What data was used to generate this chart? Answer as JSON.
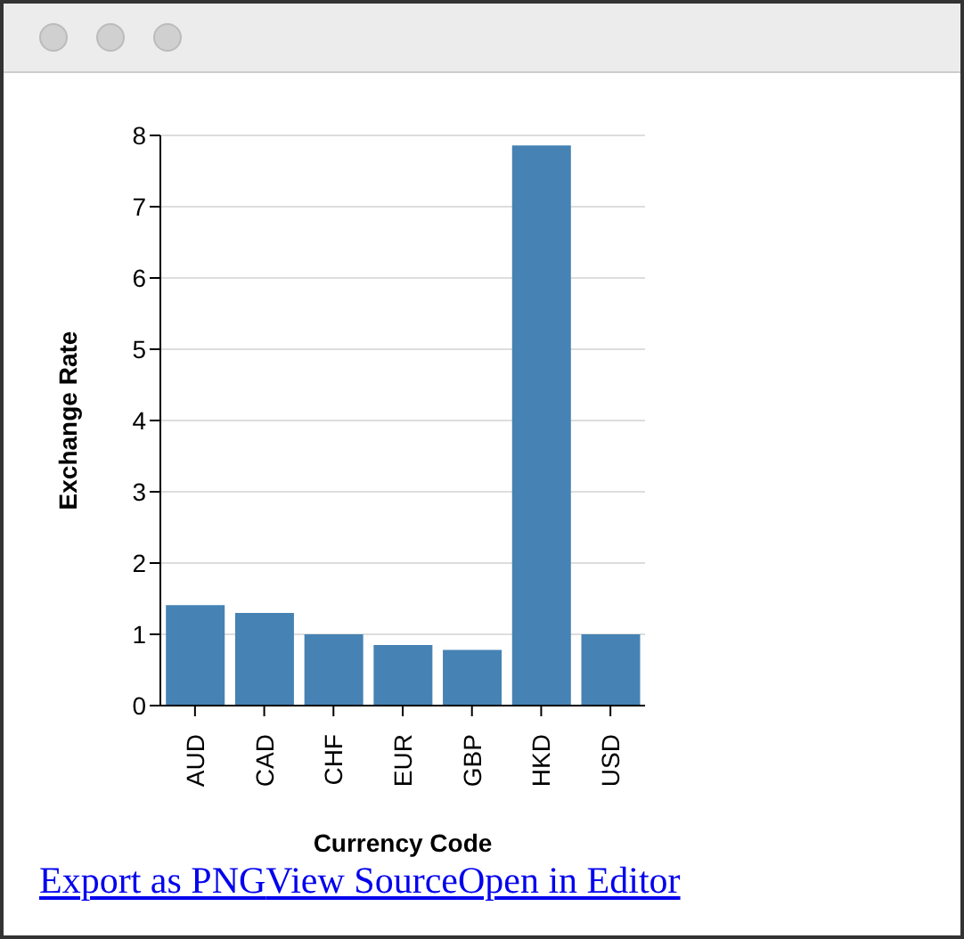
{
  "chart_data": {
    "type": "bar",
    "categories": [
      "AUD",
      "CAD",
      "CHF",
      "EUR",
      "GBP",
      "HKD",
      "USD"
    ],
    "values": [
      1.41,
      1.3,
      1.0,
      0.85,
      0.78,
      7.86,
      1.0
    ],
    "color": "#4682b4",
    "xlabel": "Currency Code",
    "ylabel": "Exchange Rate",
    "ylim": [
      0,
      8
    ],
    "yticks": [
      0,
      1,
      2,
      3,
      4,
      5,
      6,
      7,
      8
    ],
    "grid": "y",
    "annotations": [
      "Export as PNG",
      "View Source",
      "Open in Editor"
    ]
  }
}
